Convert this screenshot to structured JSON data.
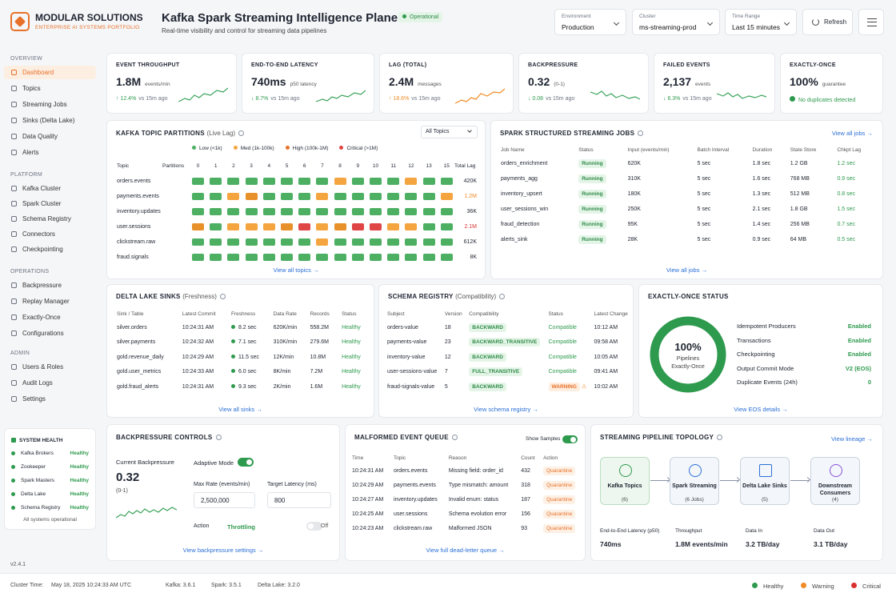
{
  "brand": {
    "name": "MODULAR SOLUTIONS",
    "tagline": "ENTERPRISE AI SYSTEMS PORTFOLIO"
  },
  "header": {
    "title": "Kafka Spark Streaming Intelligence Plane",
    "status": "Operational",
    "subtitle": "Real-time visibility and control for streaming data pipelines",
    "env_label": "Environment",
    "env_value": "Production",
    "cluster_label": "Cluster",
    "cluster_value": "ms-streaming-prod",
    "range_label": "Time Range",
    "range_value": "Last 15 minutes",
    "refresh": "Refresh"
  },
  "sidebar": {
    "overview": "OVERVIEW",
    "platform": "PLATFORM",
    "operations": "OPERATIONS",
    "admin": "ADMIN",
    "overview_items": [
      "Dashboard",
      "Topics",
      "Streaming Jobs",
      "Sinks (Delta Lake)",
      "Data Quality",
      "Alerts"
    ],
    "platform_items": [
      "Kafka Cluster",
      "Spark Cluster",
      "Schema Registry",
      "Connectors",
      "Checkpointing"
    ],
    "operations_items": [
      "Backpressure",
      "Replay Manager",
      "Exactly-Once",
      "Configurations"
    ],
    "admin_items": [
      "Users & Roles",
      "Audit Logs",
      "Settings"
    ],
    "health_title": "SYSTEM HEALTH",
    "health": [
      {
        "name": "Kafka Brokers",
        "status": "Healthy"
      },
      {
        "name": "Zookeeper",
        "status": "Healthy"
      },
      {
        "name": "Spark Masters",
        "status": "Healthy"
      },
      {
        "name": "Delta Lake",
        "status": "Healthy"
      },
      {
        "name": "Schema Registry",
        "status": "Healthy"
      }
    ],
    "health_footer": "All systems operational",
    "version": "v2.4.1"
  },
  "kpis": [
    {
      "title": "EVENT THROUGHPUT",
      "value": "1.8M",
      "unit": "events/min",
      "delta": "↑ 12.4%",
      "ref": "vs 15m ago",
      "tone": "green"
    },
    {
      "title": "END-TO-END LATENCY",
      "value": "740ms",
      "unit": "p50 latency",
      "delta": "↓ 8.7%",
      "ref": "vs 15m ago",
      "tone": "green"
    },
    {
      "title": "LAG (TOTAL)",
      "value": "2.4M",
      "unit": "messages",
      "delta": "↑ 18.6%",
      "ref": "vs 15m ago",
      "tone": "orange"
    },
    {
      "title": "BACKPRESSURE",
      "value": "0.32",
      "unit": "(0-1)",
      "delta": "↓ 0.08",
      "ref": "vs 15m ago",
      "tone": "green"
    },
    {
      "title": "FAILED EVENTS",
      "value": "2,137",
      "unit": "events",
      "delta": "↓ 6.3%",
      "ref": "vs 15m ago",
      "tone": "green"
    },
    {
      "title": "EXACTLY-ONCE",
      "value": "100%",
      "unit": "guarantee",
      "delta": "No duplicates detected",
      "ref": "",
      "tone": "green"
    }
  ],
  "partitions": {
    "title": "KAFKA TOPIC PARTITIONS",
    "sub": "(Live Lag)",
    "filter": "All Topics",
    "legend": [
      "Low (<1k)",
      "Med (1k-100k)",
      "High (100k-1M)",
      "Critical (>1M)"
    ],
    "col_topic": "Topic",
    "col_partitions": "Partitions",
    "col_total": "Total Lag",
    "partition_ids": [
      "0",
      "1",
      "2",
      "3",
      "4",
      "5",
      "6",
      "7",
      "8",
      "9",
      "10",
      "11",
      "12",
      "13",
      "15"
    ],
    "rows": [
      {
        "topic": "orders.events",
        "total": "420K",
        "levels": [
          1,
          1,
          1,
          1,
          1,
          1,
          1,
          1,
          2,
          1,
          1,
          1,
          2,
          1,
          1
        ]
      },
      {
        "topic": "payments.events",
        "total": "1.2M",
        "levels": [
          1,
          1,
          2,
          3,
          1,
          1,
          1,
          2,
          1,
          1,
          1,
          1,
          1,
          1,
          2
        ]
      },
      {
        "topic": "inventory.updates",
        "total": "36K",
        "levels": [
          1,
          1,
          1,
          1,
          1,
          1,
          1,
          1,
          1,
          1,
          1,
          1,
          1,
          1,
          1
        ]
      },
      {
        "topic": "user.sessions",
        "total": "2.1M",
        "levels": [
          3,
          1,
          2,
          2,
          2,
          3,
          4,
          2,
          3,
          4,
          4,
          2,
          2,
          1,
          1
        ]
      },
      {
        "topic": "clickstream.raw",
        "total": "612K",
        "levels": [
          1,
          1,
          1,
          1,
          1,
          1,
          1,
          2,
          1,
          1,
          1,
          1,
          1,
          1,
          1
        ]
      },
      {
        "topic": "fraud.signals",
        "total": "8K",
        "levels": [
          1,
          1,
          1,
          1,
          1,
          1,
          1,
          1,
          1,
          1,
          1,
          1,
          1,
          1,
          1
        ]
      }
    ],
    "link": "View all topics"
  },
  "jobs": {
    "title": "SPARK STRUCTURED STREAMING JOBS",
    "link_top": "View all jobs",
    "link": "View all jobs",
    "cols": [
      "Job Name",
      "Status",
      "Input (events/min)",
      "Batch Interval",
      "Duration",
      "State Store",
      "Chkpt Lag"
    ],
    "rows": [
      [
        "orders_enrichment",
        "Running",
        "620K",
        "5 sec",
        "1.8 sec",
        "1.2 GB",
        "1.2 sec"
      ],
      [
        "payments_agg",
        "Running",
        "310K",
        "5 sec",
        "1.6 sec",
        "768 MB",
        "0.9 sec"
      ],
      [
        "inventory_upsert",
        "Running",
        "180K",
        "5 sec",
        "1.3 sec",
        "512 MB",
        "0.8 sec"
      ],
      [
        "user_sessions_win",
        "Running",
        "250K",
        "5 sec",
        "2.1 sec",
        "1.8 GB",
        "1.5 sec"
      ],
      [
        "fraud_detection",
        "Running",
        "95K",
        "5 sec",
        "1.4 sec",
        "256 MB",
        "0.7 sec"
      ],
      [
        "alerts_sink",
        "Running",
        "28K",
        "5 sec",
        "0.9 sec",
        "64 MB",
        "0.5 sec"
      ]
    ]
  },
  "delta": {
    "title": "DELTA LAKE SINKS",
    "sub": "(Freshness)",
    "link": "View all sinks",
    "cols": [
      "Sink / Table",
      "Latest Commit",
      "Freshness",
      "Data Rate",
      "Records",
      "Status"
    ],
    "rows": [
      [
        "silver.orders",
        "10:24:31 AM",
        "8.2 sec",
        "620K/min",
        "558.2M",
        "Healthy"
      ],
      [
        "silver.payments",
        "10:24:32 AM",
        "7.1 sec",
        "310K/min",
        "279.6M",
        "Healthy"
      ],
      [
        "gold.revenue_daily",
        "10:24:29 AM",
        "11.5 sec",
        "12K/min",
        "10.8M",
        "Healthy"
      ],
      [
        "gold.user_metrics",
        "10:24:33 AM",
        "6.0 sec",
        "8K/min",
        "7.2M",
        "Healthy"
      ],
      [
        "gold.fraud_alerts",
        "10:24:31 AM",
        "9.3 sec",
        "2K/min",
        "1.6M",
        "Healthy"
      ]
    ]
  },
  "schema": {
    "title": "SCHEMA REGISTRY",
    "sub": "(Compatibility)",
    "link": "View schema registry",
    "cols": [
      "Subject",
      "Version",
      "Compatibility",
      "Status",
      "Latest Change"
    ],
    "rows": [
      [
        "orders-value",
        "18",
        "BACKWARD",
        "Compatible",
        "10:12 AM"
      ],
      [
        "payments-value",
        "23",
        "BACKWARD_TRANSITIVE",
        "Compatible",
        "09:58 AM"
      ],
      [
        "inventory-value",
        "12",
        "BACKWARD",
        "Compatible",
        "10:05 AM"
      ],
      [
        "user-sessions-value",
        "7",
        "FULL_TRANSITIVE",
        "Compatible",
        "09:41 AM"
      ],
      [
        "fraud-signals-value",
        "5",
        "BACKWARD",
        "WARNING",
        "10:02 AM"
      ]
    ]
  },
  "eos": {
    "title": "EXACTLY-ONCE STATUS",
    "pct": "100%",
    "l1": "Pipelines",
    "l2": "Exactly-Once",
    "fraction": 1.0,
    "link": "View EOS details",
    "rows": [
      [
        "Idempotent Producers",
        "Enabled"
      ],
      [
        "Transactions",
        "Enabled"
      ],
      [
        "Checkpointing",
        "Enabled"
      ],
      [
        "Output Commit Mode",
        "V2 (EOS)"
      ],
      [
        "Duplicate Events (24h)",
        "0"
      ]
    ]
  },
  "bp": {
    "title": "BACKPRESSURE CONTROLS",
    "current_label": "Current Backpressure",
    "current_value": "0.32",
    "range": "(0-1)",
    "adaptive": "Adaptive Mode",
    "maxrate_label": "Max Rate (events/min)",
    "maxrate": "2,500,000",
    "latency_label": "Target Latency (ms)",
    "latency": "800",
    "action_label": "Action",
    "action": "Throttling",
    "off": "Off",
    "link": "View backpressure settings"
  },
  "malformed": {
    "title": "MALFORMED EVENT QUEUE",
    "show": "Show Samples",
    "link": "View full dead-letter queue",
    "cols": [
      "Time",
      "Topic",
      "Reason",
      "Count",
      "Action"
    ],
    "rows": [
      [
        "10:24:31 AM",
        "orders.events",
        "Missing field: order_id",
        "432",
        "Quarantine"
      ],
      [
        "10:24:29 AM",
        "payments.events",
        "Type mismatch: amount",
        "318",
        "Quarantine"
      ],
      [
        "10:24:27 AM",
        "inventory.updates",
        "Invalid enum: status",
        "187",
        "Quarantine"
      ],
      [
        "10:24:25 AM",
        "user.sessions",
        "Schema evolution error",
        "156",
        "Quarantine"
      ],
      [
        "10:24:23 AM",
        "clickstream.raw",
        "Malformed JSON",
        "93",
        "Quarantine"
      ]
    ]
  },
  "topology": {
    "title": "STREAMING PIPELINE TOPOLOGY",
    "link": "View lineage",
    "nodes": [
      {
        "name": "Kafka Topics",
        "sub": "(6)"
      },
      {
        "name": "Spark Streaming",
        "sub": "(6 Jobs)"
      },
      {
        "name": "Delta Lake Sinks",
        "sub": "(5)"
      },
      {
        "name": "Downstream Consumers",
        "sub": "(4)"
      }
    ],
    "stats": [
      {
        "label": "End-to-End Latency (p50)",
        "value": "740ms"
      },
      {
        "label": "Throughput",
        "value": "1.8M events/min"
      },
      {
        "label": "Data In",
        "value": "3.2 TB/day"
      },
      {
        "label": "Data Out",
        "value": "3.1 TB/day"
      }
    ]
  },
  "footer": {
    "cluster_time_label": "Cluster Time:",
    "cluster_time": "May 18, 2025 10:24:33 AM UTC",
    "kafka": "Kafka: 3.6.1",
    "spark": "Spark: 3.5.1",
    "delta": "Delta Lake: 3.2.0",
    "legend": [
      "Healthy",
      "Warning",
      "Critical"
    ]
  },
  "colors": {
    "low": "#4caf62",
    "med": "#f5a540",
    "high": "#b9a64e",
    "critical": "#e04545",
    "accent": "#e8712a"
  }
}
